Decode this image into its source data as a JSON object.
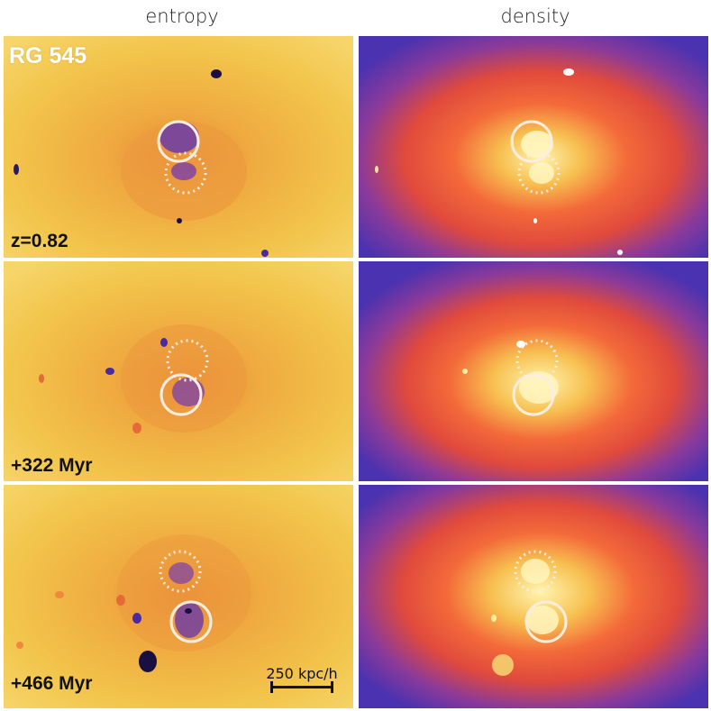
{
  "columns": {
    "left_title": "entropy",
    "right_title": "density"
  },
  "object_label": "RG 545",
  "rows": [
    {
      "label": "z=0.82"
    },
    {
      "label": "+322 Myr"
    },
    {
      "label": "+466 Myr"
    }
  ],
  "scalebar": {
    "label": "250 kpc/h"
  },
  "colors": {
    "entropy_background": "#f3c84a",
    "entropy_low": "#4a2aa0",
    "density_background": "#4a32b0",
    "density_high": "#fff2a8",
    "circle_stroke": "#fbeee0"
  }
}
